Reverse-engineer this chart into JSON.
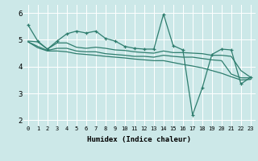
{
  "xlabel": "Humidex (Indice chaleur)",
  "bg_color": "#cce8e8",
  "line_color": "#2e7d6e",
  "grid_color": "#b0d0d0",
  "xlim": [
    -0.5,
    23.5
  ],
  "ylim": [
    1.8,
    6.3
  ],
  "xticks": [
    0,
    1,
    2,
    3,
    4,
    5,
    6,
    7,
    8,
    9,
    10,
    11,
    12,
    13,
    14,
    15,
    16,
    17,
    18,
    19,
    20,
    21,
    22,
    23
  ],
  "yticks": [
    2,
    3,
    4,
    5,
    6
  ],
  "line1_x": [
    0,
    1,
    2,
    3,
    4,
    5,
    6,
    7,
    8,
    9,
    10,
    11,
    12,
    13,
    14,
    15,
    16,
    17,
    18,
    19,
    20,
    21,
    22,
    23
  ],
  "line1_y": [
    5.55,
    4.95,
    4.65,
    4.95,
    5.22,
    5.32,
    5.25,
    5.32,
    5.05,
    4.95,
    4.75,
    4.68,
    4.65,
    4.65,
    5.95,
    4.78,
    4.62,
    2.2,
    3.2,
    4.45,
    4.65,
    4.62,
    3.35,
    3.6
  ],
  "line2_x": [
    0,
    1,
    2,
    3,
    4,
    5,
    6,
    7,
    8,
    9,
    10,
    11,
    12,
    13,
    14,
    15,
    16,
    17,
    18,
    19,
    20,
    21,
    22,
    23
  ],
  "line2_y": [
    4.95,
    4.92,
    4.65,
    4.88,
    4.88,
    4.72,
    4.68,
    4.72,
    4.68,
    4.62,
    4.6,
    4.55,
    4.52,
    4.5,
    4.58,
    4.52,
    4.52,
    4.5,
    4.48,
    4.42,
    4.42,
    4.38,
    3.85,
    3.6
  ],
  "line3_x": [
    0,
    1,
    2,
    3,
    4,
    5,
    6,
    7,
    8,
    9,
    10,
    11,
    12,
    13,
    14,
    15,
    16,
    17,
    18,
    19,
    20,
    21,
    22,
    23
  ],
  "line3_y": [
    4.92,
    4.75,
    4.6,
    4.68,
    4.68,
    4.58,
    4.55,
    4.55,
    4.48,
    4.45,
    4.42,
    4.38,
    4.38,
    4.35,
    4.42,
    4.38,
    4.35,
    4.35,
    4.3,
    4.25,
    4.22,
    3.72,
    3.58,
    3.58
  ],
  "line4_x": [
    0,
    1,
    2,
    3,
    4,
    5,
    6,
    7,
    8,
    9,
    10,
    11,
    12,
    13,
    14,
    15,
    16,
    17,
    18,
    19,
    20,
    21,
    22,
    23
  ],
  "line4_y": [
    4.92,
    4.7,
    4.58,
    4.58,
    4.55,
    4.48,
    4.45,
    4.42,
    4.38,
    4.35,
    4.32,
    4.28,
    4.25,
    4.22,
    4.22,
    4.15,
    4.08,
    4.02,
    3.95,
    3.85,
    3.75,
    3.62,
    3.5,
    3.52
  ]
}
